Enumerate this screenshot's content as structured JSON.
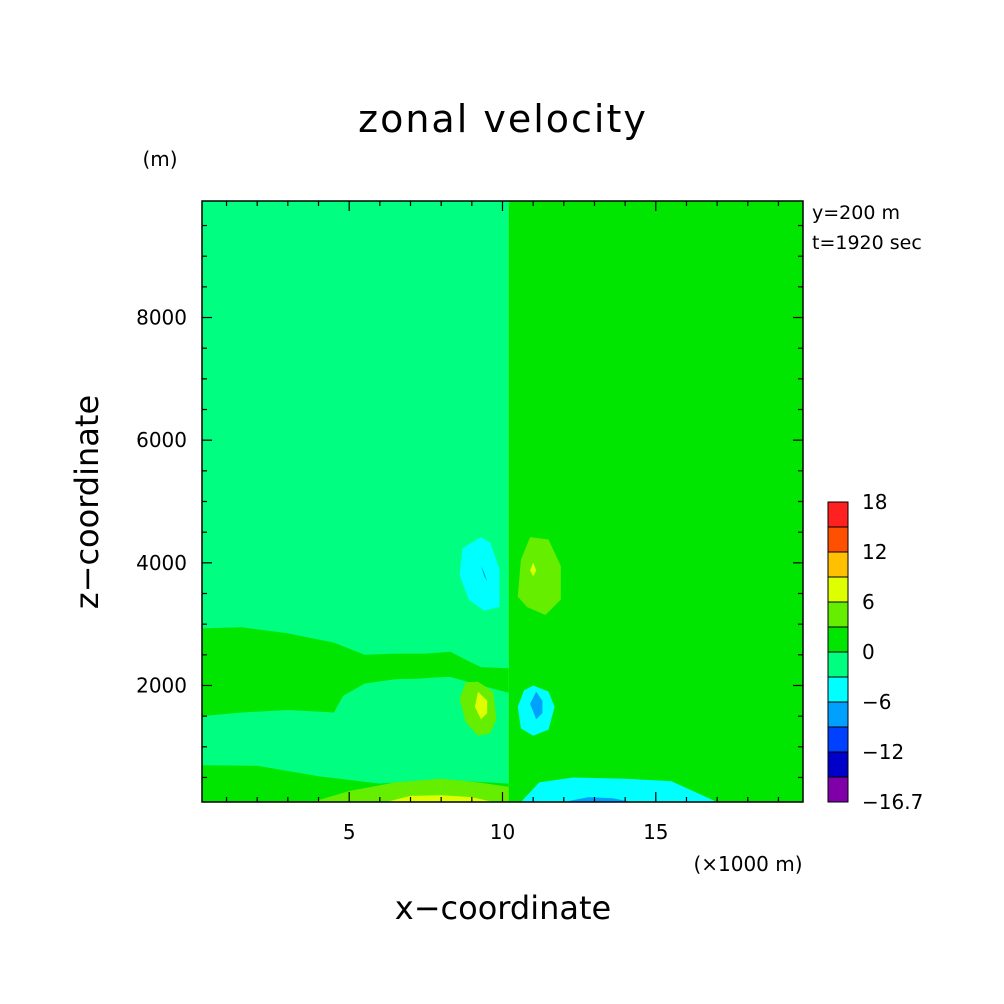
{
  "chart_data": {
    "type": "heatmap",
    "title": "zonal velocity",
    "xlabel": "x−coordinate",
    "ylabel": "z−coordinate",
    "x_unit": "(×1000 m)",
    "y_unit": "(m)",
    "annotations": [
      "y=200 m",
      "t=1920 sec"
    ],
    "xlim": [
      0.2,
      19.8
    ],
    "ylim": [
      100,
      9900
    ],
    "x_ticks": [
      5,
      10,
      15
    ],
    "x_tick_labels": [
      "5",
      "10",
      "15"
    ],
    "y_ticks": [
      2000,
      4000,
      6000,
      8000
    ],
    "y_tick_labels": [
      "2000",
      "4000",
      "6000",
      "8000"
    ],
    "grid": false,
    "colorbar": {
      "placement": "right",
      "levels": [
        -16.7,
        -15,
        -12,
        -9,
        -6,
        -3,
        0,
        3,
        6,
        9,
        12,
        15,
        18
      ],
      "labels": [
        "18",
        "12",
        "6",
        "0",
        "−6",
        "−12",
        "−16.7"
      ],
      "label_values": [
        18,
        12,
        6,
        0,
        -6,
        -12,
        -16.7
      ],
      "colors": [
        "#7f00a8",
        "#0000c8",
        "#0040ff",
        "#00a0ff",
        "#00ffff",
        "#00ff80",
        "#00e600",
        "#66ee00",
        "#ddff00",
        "#ffc000",
        "#ff5000",
        "#ff2020"
      ]
    },
    "fields": [
      {
        "name": "left_background",
        "value": -1,
        "color": "#00ff80",
        "x": [
          0.2,
          10.2,
          10.2,
          0.2
        ],
        "y": [
          9900,
          9900,
          100,
          100
        ]
      },
      {
        "name": "right_background",
        "value": 1,
        "color": "#00e600",
        "x": [
          10.2,
          19.8,
          19.8,
          10.2
        ],
        "y": [
          9900,
          9900,
          100,
          100
        ]
      },
      {
        "name": "band_left_positive",
        "value": 1,
        "color": "#00e600",
        "x": [
          0.2,
          1.5,
          3,
          4.5,
          5.5,
          6.5,
          7.5,
          8.3,
          8.8,
          9.3,
          10.2,
          10.2,
          9,
          8.3,
          7.8,
          7.2,
          6.5,
          5.5,
          4.8,
          4.5,
          3,
          1.5,
          0.2
        ],
        "y": [
          2930,
          2950,
          2850,
          2700,
          2500,
          2520,
          2520,
          2550,
          2420,
          2300,
          2280,
          1880,
          2040,
          2140,
          2130,
          2110,
          2100,
          2030,
          1830,
          1560,
          1600,
          1560,
          1500
        ]
      },
      {
        "name": "band_right_positive",
        "value": 1,
        "color": "#00e600",
        "x": [
          10.2,
          11.5,
          12.6,
          13.5,
          14.5,
          15.5,
          17,
          19.8,
          19.8,
          17,
          15.5,
          14.5,
          13.5,
          12.8,
          12.3,
          12.1,
          11.8,
          11.5,
          10.2
        ],
        "y": [
          2280,
          2300,
          2500,
          2420,
          2430,
          2460,
          2620,
          2920,
          1050,
          1320,
          1250,
          1380,
          1480,
          1700,
          1650,
          2040,
          2080,
          2320,
          2280
        ]
      },
      {
        "name": "bottom_left_positive",
        "value": 2,
        "color": "#00e600",
        "x": [
          0.2,
          2,
          4,
          6,
          8,
          9.5,
          10.2,
          10.2,
          0.2
        ],
        "y": [
          700,
          690,
          520,
          400,
          460,
          420,
          400,
          100,
          100
        ]
      },
      {
        "name": "bottom_left_strong",
        "value": 4,
        "color": "#66ee00",
        "x": [
          3.8,
          5,
          6.5,
          8,
          9.2,
          10.2,
          10.2,
          3.8
        ],
        "y": [
          100,
          280,
          420,
          480,
          420,
          350,
          100,
          100
        ]
      },
      {
        "name": "bottom_left_max",
        "value": 7,
        "color": "#ddff00",
        "x": [
          6.2,
          7,
          8,
          9,
          9.7,
          6.2
        ],
        "y": [
          100,
          200,
          210,
          180,
          100,
          100
        ]
      },
      {
        "name": "bottom_right_negative",
        "value": -4,
        "color": "#00ffff",
        "x": [
          10.6,
          11.2,
          12.3,
          14,
          15.5,
          17,
          16,
          10.6
        ],
        "y": [
          100,
          420,
          500,
          480,
          440,
          100,
          100,
          100
        ]
      },
      {
        "name": "bottom_right_min",
        "value": -7,
        "color": "#00a0ff",
        "x": [
          12,
          12.8,
          13.6,
          14.2,
          12
        ],
        "y": [
          100,
          180,
          160,
          100,
          100
        ]
      },
      {
        "name": "upper_left_negative",
        "value": -4,
        "color": "#00ffff",
        "x": [
          9.6,
          9.9,
          9.9,
          9.4,
          8.9,
          8.6,
          8.7,
          9.3,
          9.6
        ],
        "y": [
          4330,
          3900,
          3280,
          3220,
          3400,
          3800,
          4240,
          4420,
          4330
        ]
      },
      {
        "name": "upper_left_min",
        "value": -8,
        "color": "#00a0ff",
        "x": [
          9.3,
          9.4,
          9.5,
          9.4,
          9.3
        ],
        "y": [
          3950,
          3850,
          3700,
          3780,
          3950
        ]
      },
      {
        "name": "upper_right_positive",
        "value": 4,
        "color": "#66ee00",
        "x": [
          10.9,
          11.5,
          11.9,
          11.9,
          11.4,
          10.8,
          10.5,
          10.6,
          10.9
        ],
        "y": [
          4420,
          4380,
          3950,
          3400,
          3150,
          3280,
          3450,
          4050,
          4420
        ]
      },
      {
        "name": "upper_right_max",
        "value": 7,
        "color": "#ddff00",
        "x": [
          11,
          11.1,
          11,
          10.9,
          11
        ],
        "y": [
          4000,
          3880,
          3780,
          3880,
          4000
        ]
      },
      {
        "name": "lower_left_positive",
        "value": 4,
        "color": "#66ee00",
        "x": [
          9.2,
          9.7,
          9.8,
          9.6,
          9.2,
          8.8,
          8.6,
          8.8,
          9.2
        ],
        "y": [
          2060,
          1900,
          1450,
          1220,
          1180,
          1400,
          1780,
          2050,
          2060
        ]
      },
      {
        "name": "lower_left_max",
        "value": 7,
        "color": "#ddff00",
        "x": [
          9.2,
          9.5,
          9.5,
          9.3,
          9.1,
          9.2
        ],
        "y": [
          1900,
          1750,
          1550,
          1450,
          1650,
          1900
        ]
      },
      {
        "name": "lower_right_negative",
        "value": -4,
        "color": "#00ffff",
        "x": [
          11,
          11.5,
          11.7,
          11.5,
          11,
          10.6,
          10.5,
          10.7,
          11
        ],
        "y": [
          2000,
          1900,
          1650,
          1280,
          1180,
          1300,
          1650,
          1920,
          2000
        ]
      },
      {
        "name": "lower_right_min",
        "value": -8,
        "color": "#00a0ff",
        "x": [
          11.1,
          11.3,
          11.3,
          11.1,
          10.9,
          11.1
        ],
        "y": [
          1900,
          1750,
          1550,
          1450,
          1700,
          1900
        ]
      }
    ]
  }
}
